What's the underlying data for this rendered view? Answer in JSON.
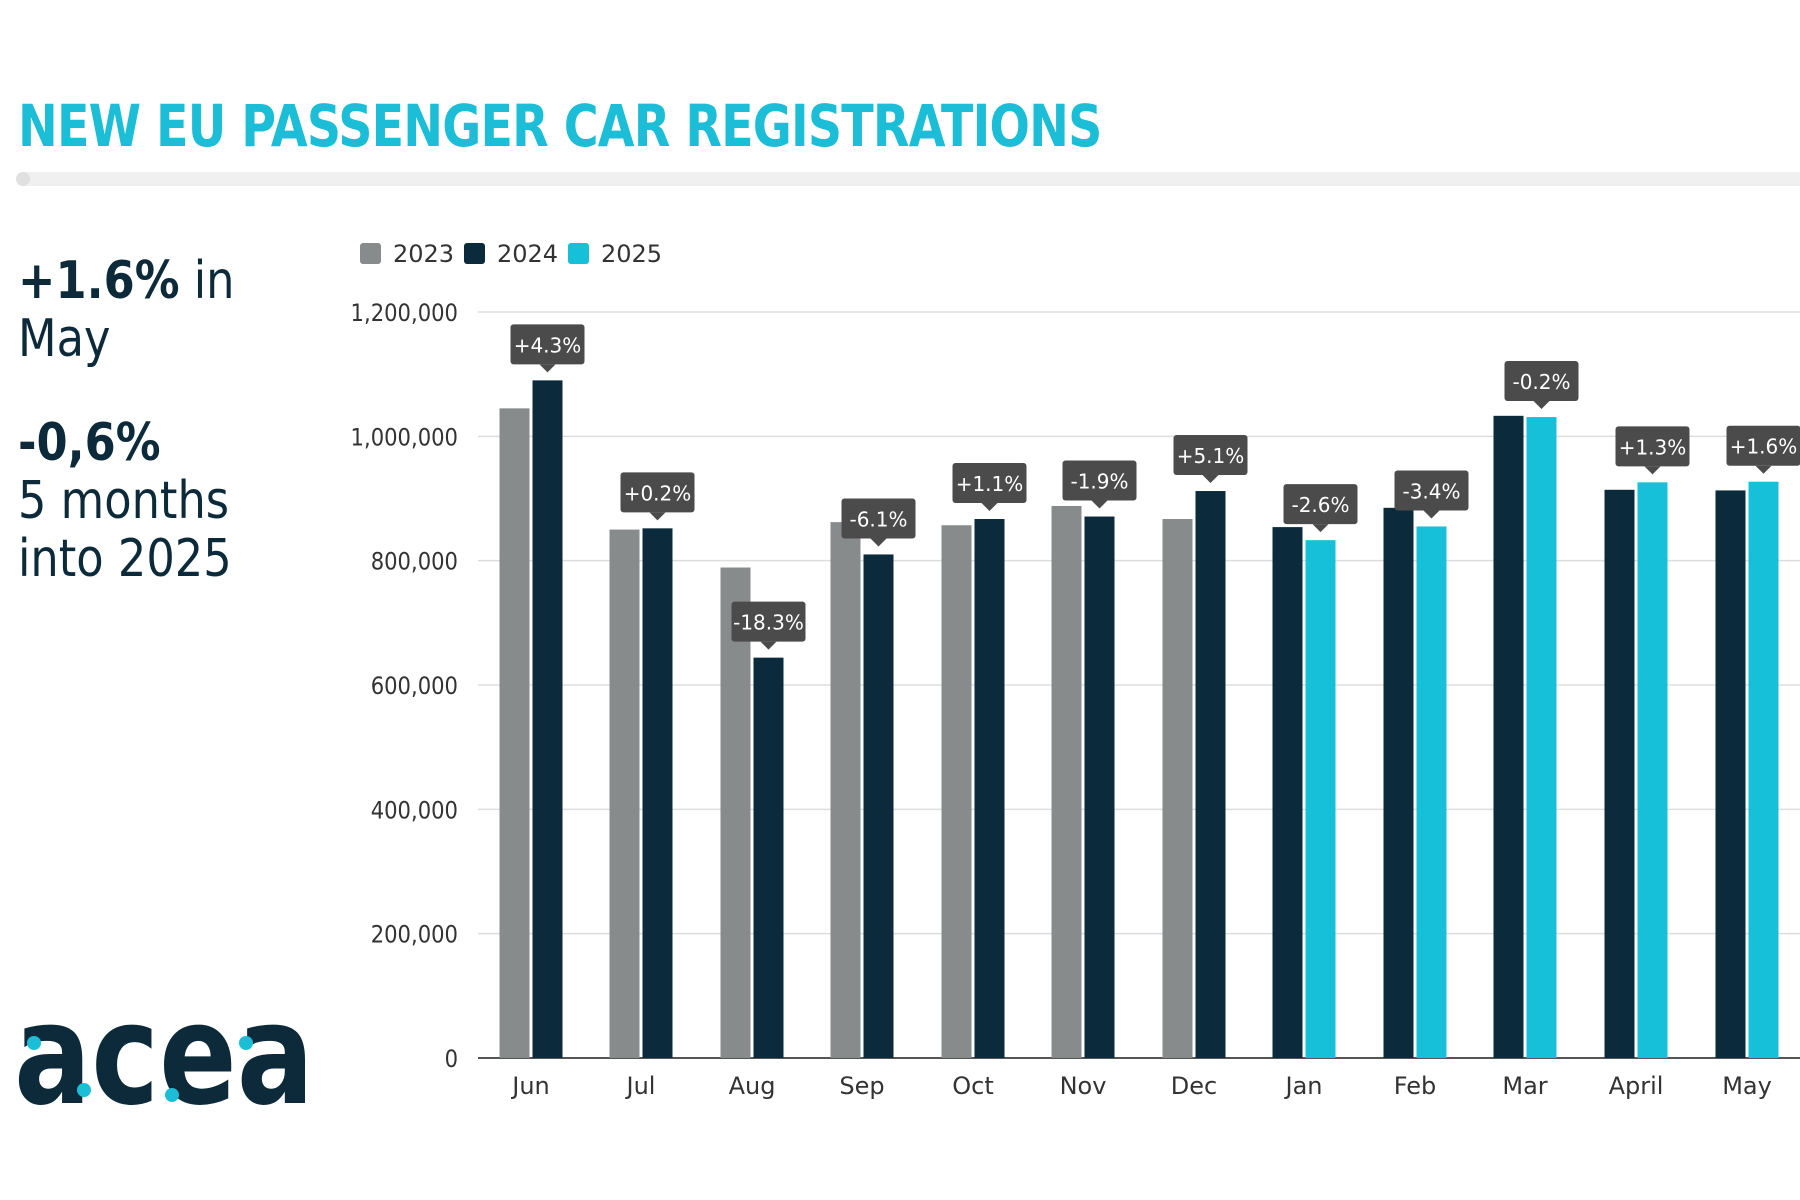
{
  "header": {
    "title": "NEW EU PASSENGER CAR REGISTRATIONS"
  },
  "stats": {
    "monthly": {
      "value": "+1.6%",
      "text": "in",
      "period": "May"
    },
    "ytd": {
      "value": "-0,6%",
      "line1": "5 months",
      "line2": "into 2025"
    }
  },
  "logo": {
    "text": "acea"
  },
  "colors": {
    "title": "#1cbdd6",
    "text": "#0d2a3a",
    "s2023": "#888b8c",
    "s2024": "#0b2b3d",
    "s2025": "#16c0d8",
    "grid": "#dddddd",
    "callout": "#4b4b4b",
    "accent_dot": "#1cbdd6"
  },
  "chart_data": {
    "type": "bar",
    "title": "",
    "xlabel": "",
    "ylabel": "",
    "ylim": [
      0,
      1200000
    ],
    "yticks": [
      "0",
      "200,000",
      "400,000",
      "600,000",
      "800,000",
      "1,000,000",
      "1,200,000"
    ],
    "grid": true,
    "legend_position": "top-left",
    "legend": [
      "2023",
      "2024",
      "2025"
    ],
    "categories": [
      "Jun",
      "Jul",
      "Aug",
      "Sep",
      "Oct",
      "Nov",
      "Dec",
      "Jan",
      "Feb",
      "Mar",
      "April",
      "May"
    ],
    "groups": [
      {
        "label": "Jun",
        "bars": [
          {
            "series": "2023",
            "value": 1045000
          },
          {
            "series": "2024",
            "value": 1090000
          }
        ],
        "change": "+4.3%"
      },
      {
        "label": "Jul",
        "bars": [
          {
            "series": "2023",
            "value": 850000
          },
          {
            "series": "2024",
            "value": 852000
          }
        ],
        "change": "+0.2%"
      },
      {
        "label": "Aug",
        "bars": [
          {
            "series": "2023",
            "value": 789000
          },
          {
            "series": "2024",
            "value": 644000
          }
        ],
        "change": "-18.3%"
      },
      {
        "label": "Sep",
        "bars": [
          {
            "series": "2023",
            "value": 862000
          },
          {
            "series": "2024",
            "value": 810000
          }
        ],
        "change": "-6.1%"
      },
      {
        "label": "Oct",
        "bars": [
          {
            "series": "2023",
            "value": 857000
          },
          {
            "series": "2024",
            "value": 867000
          }
        ],
        "change": "+1.1%"
      },
      {
        "label": "Nov",
        "bars": [
          {
            "series": "2023",
            "value": 888000
          },
          {
            "series": "2024",
            "value": 871000
          }
        ],
        "change": "-1.9%"
      },
      {
        "label": "Dec",
        "bars": [
          {
            "series": "2023",
            "value": 867000
          },
          {
            "series": "2024",
            "value": 912000
          }
        ],
        "change": "+5.1%"
      },
      {
        "label": "Jan",
        "bars": [
          {
            "series": "2024",
            "value": 854000
          },
          {
            "series": "2025",
            "value": 833000
          }
        ],
        "change": "-2.6%"
      },
      {
        "label": "Feb",
        "bars": [
          {
            "series": "2024",
            "value": 885000
          },
          {
            "series": "2025",
            "value": 855000
          }
        ],
        "change": "-3.4%"
      },
      {
        "label": "Mar",
        "bars": [
          {
            "series": "2024",
            "value": 1033000
          },
          {
            "series": "2025",
            "value": 1031000
          }
        ],
        "change": "-0.2%"
      },
      {
        "label": "April",
        "bars": [
          {
            "series": "2024",
            "value": 914000
          },
          {
            "series": "2025",
            "value": 926000
          }
        ],
        "change": "+1.3%"
      },
      {
        "label": "May",
        "bars": [
          {
            "series": "2024",
            "value": 913000
          },
          {
            "series": "2025",
            "value": 927000
          }
        ],
        "change": "+1.6%"
      }
    ]
  }
}
